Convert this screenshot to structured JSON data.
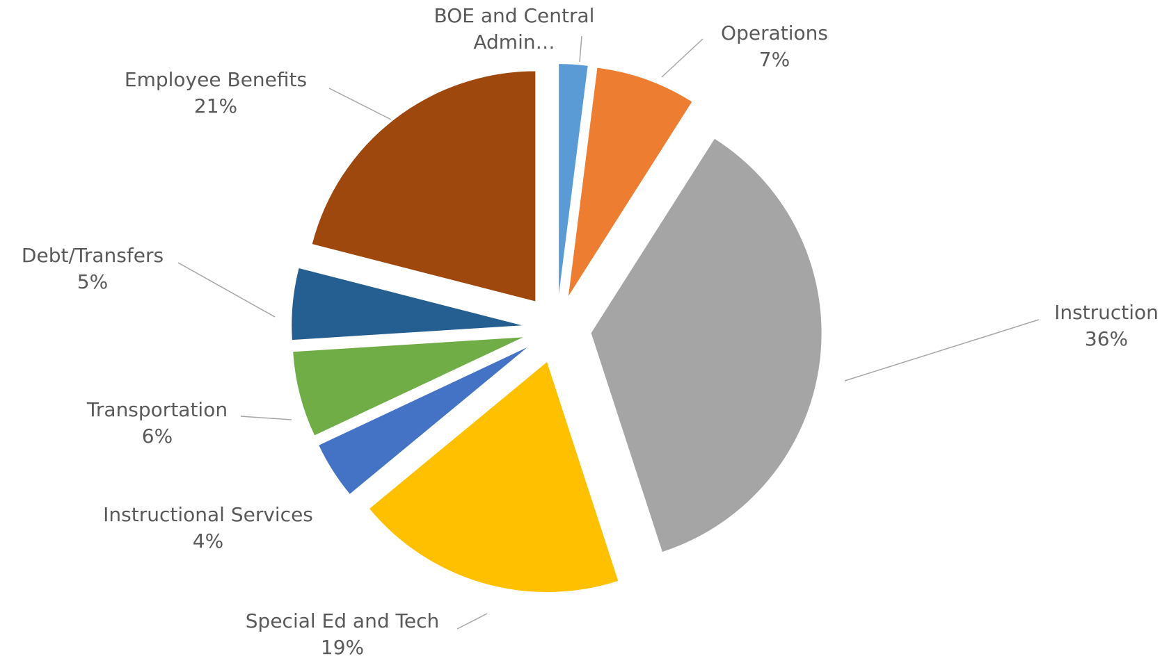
{
  "chart_data": {
    "type": "pie",
    "categories": [
      "BOE and Central Admin…",
      "Operations",
      "Instruction",
      "Special Ed and Tech",
      "Instructional Services",
      "Transportation",
      "Debt/Transfers",
      "Employee Benefits"
    ],
    "values": [
      2,
      7,
      36,
      19,
      4,
      6,
      5,
      21
    ],
    "value_labels": [
      null,
      "7%",
      "36%",
      "19%",
      "4%",
      "6%",
      "5%",
      "21%"
    ],
    "colors": [
      "#5b9bd5",
      "#ed7d31",
      "#a5a5a5",
      "#ffc000",
      "#4472c4",
      "#70ad47",
      "#255e91",
      "#9e480e"
    ],
    "exploded": true
  }
}
